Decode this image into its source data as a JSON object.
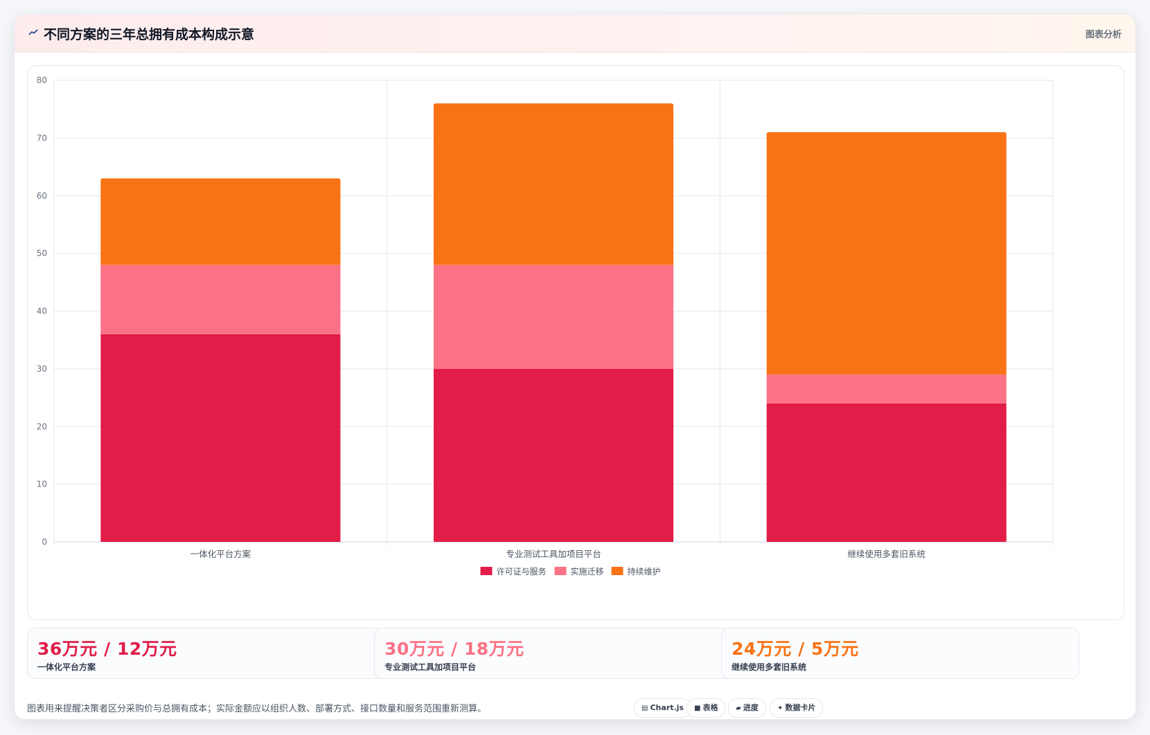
{
  "header": {
    "title": "不同方案的三年总拥有成本构成示意",
    "badge": "图表分析"
  },
  "colors": {
    "license": "#e11d48",
    "implementation": "#fb7185",
    "maintenance": "#f97316"
  },
  "chart_data": {
    "type": "bar",
    "stacked": true,
    "categories": [
      "一体化平台方案",
      "专业测试工具加项目平台",
      "继续使用多套旧系统"
    ],
    "series": [
      {
        "name": "许可证与服务",
        "values": [
          36,
          30,
          24
        ]
      },
      {
        "name": "实施迁移",
        "values": [
          12,
          18,
          5
        ]
      },
      {
        "name": "持续维护",
        "values": [
          15,
          28,
          42
        ]
      }
    ],
    "ylim": [
      0,
      80
    ],
    "yticks": [
      0,
      10,
      20,
      30,
      40,
      50,
      60,
      70,
      80
    ],
    "grid": true,
    "legend": "bottom"
  },
  "stats": [
    {
      "value": "36万元 / 12万元",
      "label": "一体化平台方案"
    },
    {
      "value": "30万元 / 18万元",
      "label": "专业测试工具加项目平台"
    },
    {
      "value": "24万元 / 5万元",
      "label": "继续使用多套旧系统"
    }
  ],
  "footnote": "图表用来提醒决策者区分采购价与总拥有成本；实际金额应以组织人数、部署方式、接口数量和服务范围重新测算。",
  "tags": [
    {
      "icon": "chart-icon",
      "label": "Chart.js"
    },
    {
      "icon": "table-icon",
      "label": "表格"
    },
    {
      "icon": "progress-icon",
      "label": "进度"
    },
    {
      "icon": "sparkle-icon",
      "label": "数据卡片"
    }
  ]
}
